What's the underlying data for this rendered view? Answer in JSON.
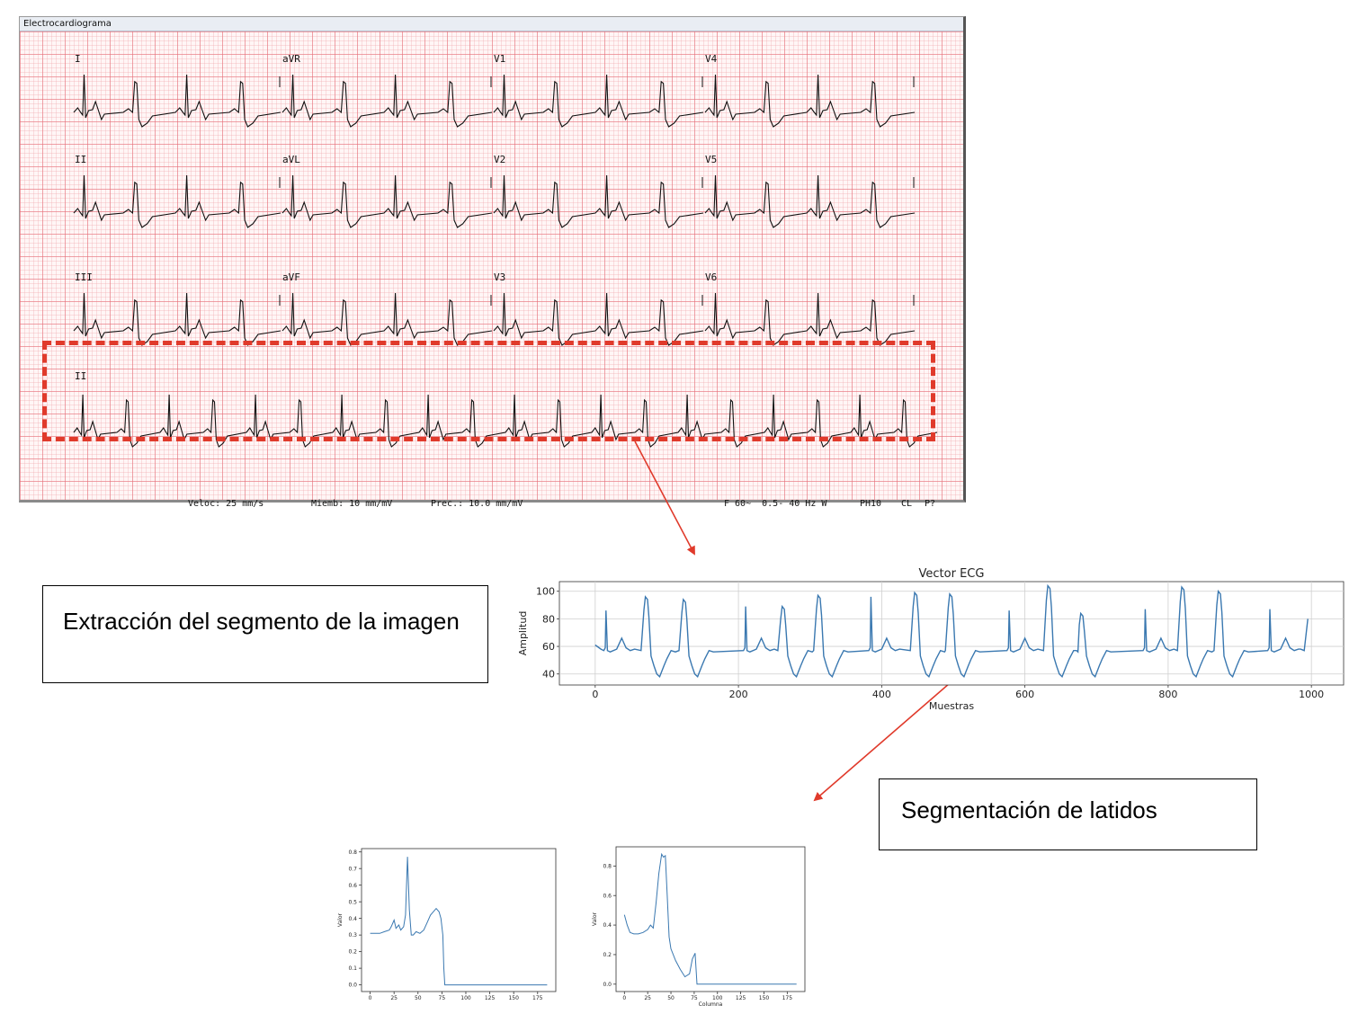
{
  "ecg_window": {
    "title": "Electrocardiograma",
    "leads": [
      "I",
      "aVR",
      "V1",
      "V4",
      "II",
      "aVL",
      "V2",
      "V5",
      "III",
      "aVF",
      "V3",
      "V6"
    ],
    "rhythm_lead": "II",
    "footer": {
      "speed": "Veloc: 25 mm/s",
      "limb": "Miemb: 10 mm/mV",
      "precordial": "Prec.: 10.0 mm/mV",
      "filter": "F 60~  0.5- 40 Hz W",
      "ph": "PH10",
      "cl": "CL",
      "p": "P?"
    }
  },
  "captions": {
    "extraction": "Extracción del segmento de la imagen",
    "segmentation": "Segmentación de latidos"
  },
  "colors": {
    "highlight": "#e03a2b",
    "series": "#3a78b0",
    "trace": "#111111"
  },
  "chart_data": [
    {
      "type": "line",
      "title": "Vector ECG",
      "xlabel": "Muestras",
      "ylabel": "Amplitud",
      "xlim": [
        -50,
        1045
      ],
      "ylim": [
        32,
        107
      ],
      "xticks": [
        0,
        200,
        400,
        600,
        800,
        1000
      ],
      "yticks": [
        40,
        60,
        80,
        100
      ],
      "grid": true,
      "beats": [
        {
          "q": 15,
          "r": 86,
          "t": 72,
          "tv": 96
        },
        {
          "q": 80,
          "r": 0,
          "t": 125,
          "tv": 94
        },
        {
          "q": 210,
          "r": 89,
          "t": 263,
          "tv": 89
        },
        {
          "q": 275,
          "r": 0,
          "t": 313,
          "tv": 97
        },
        {
          "q": 385,
          "r": 96,
          "t": 448,
          "tv": 99
        },
        {
          "q": 465,
          "r": 0,
          "t": 497,
          "tv": 98
        },
        {
          "q": 578,
          "r": 86,
          "t": 634,
          "tv": 104
        },
        {
          "q": 645,
          "r": 0,
          "t": 680,
          "tv": 84
        },
        {
          "q": 768,
          "r": 87,
          "t": 821,
          "tv": 103
        },
        {
          "q": 830,
          "r": 0,
          "t": 872,
          "tv": 100
        },
        {
          "q": 942,
          "r": 87,
          "t": 0,
          "tv": 0
        }
      ],
      "baseline": 57,
      "trough": 36,
      "end_value": 80
    },
    {
      "type": "line",
      "ylabel": "Valor",
      "xlim": [
        -9,
        194
      ],
      "ylim": [
        -0.04,
        0.82
      ],
      "xticks": [
        0,
        25,
        50,
        75,
        100,
        125,
        150,
        175
      ],
      "yticks": [
        0.0,
        0.1,
        0.2,
        0.3,
        0.4,
        0.5,
        0.6,
        0.7,
        0.8
      ],
      "x": [
        0,
        5,
        10,
        15,
        20,
        22,
        25,
        27,
        30,
        32,
        35,
        37,
        39,
        41,
        43,
        45,
        48,
        52,
        56,
        60,
        63,
        66,
        69,
        72,
        74,
        76,
        77,
        78,
        185
      ],
      "y": [
        0.31,
        0.31,
        0.31,
        0.32,
        0.33,
        0.35,
        0.39,
        0.34,
        0.36,
        0.33,
        0.35,
        0.42,
        0.77,
        0.45,
        0.3,
        0.3,
        0.32,
        0.31,
        0.33,
        0.38,
        0.42,
        0.44,
        0.46,
        0.44,
        0.4,
        0.3,
        0.1,
        0.0,
        0.0
      ]
    },
    {
      "type": "line",
      "ylabel": "Valor",
      "xlabel": "Columna",
      "xlim": [
        -9,
        194
      ],
      "ylim": [
        -0.05,
        0.93
      ],
      "xticks": [
        0,
        25,
        50,
        75,
        100,
        125,
        150,
        175
      ],
      "yticks": [
        0.0,
        0.2,
        0.4,
        0.6,
        0.8
      ],
      "x": [
        0,
        3,
        6,
        10,
        15,
        20,
        25,
        28,
        31,
        34,
        37,
        40,
        42,
        44,
        46,
        48,
        50,
        55,
        60,
        65,
        70,
        73,
        76,
        77,
        78,
        185
      ],
      "y": [
        0.47,
        0.4,
        0.35,
        0.34,
        0.34,
        0.35,
        0.37,
        0.4,
        0.38,
        0.55,
        0.75,
        0.88,
        0.86,
        0.87,
        0.6,
        0.32,
        0.24,
        0.16,
        0.1,
        0.05,
        0.07,
        0.17,
        0.21,
        0.1,
        0.0,
        0.0
      ]
    }
  ]
}
